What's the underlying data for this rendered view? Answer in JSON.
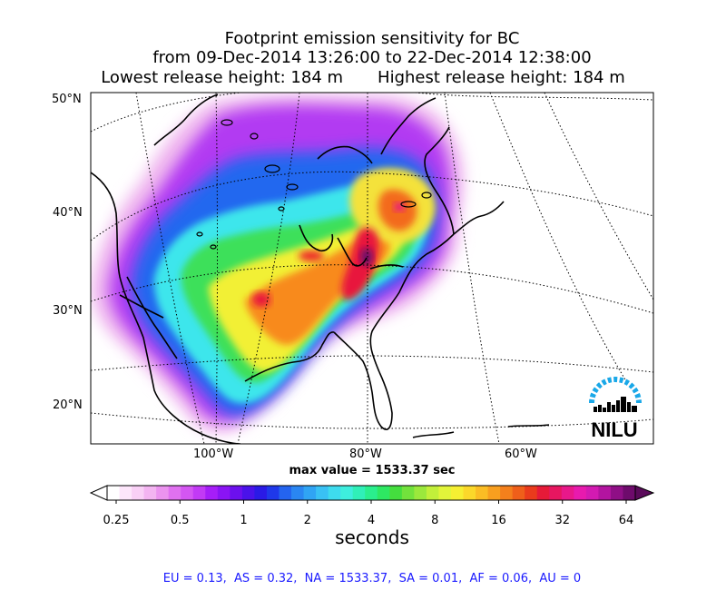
{
  "title": {
    "line1": "Footprint emission sensitivity for BC",
    "line2": "from 09-Dec-2014 13:26:00 to 22-Dec-2014 12:38:00",
    "lowest": "Lowest release height: 184 m",
    "highest": "Highest release height: 184 m"
  },
  "map": {
    "lat_labels": [
      "50°N",
      "40°N",
      "30°N",
      "20°N"
    ],
    "lon_labels": [
      "100°W",
      "80°W",
      "60°W"
    ],
    "logo_text": "NILU",
    "max_value": "max value = 1533.37 sec"
  },
  "colorbar": {
    "ticks": [
      "0.25",
      "0.5",
      "1",
      "2",
      "4",
      "8",
      "16",
      "32",
      "64"
    ],
    "unit": "seconds",
    "colors": [
      "#ffffff",
      "#fde6fb",
      "#f9d0f6",
      "#f3b4f1",
      "#eb93ef",
      "#e071f0",
      "#d456f2",
      "#c23af5",
      "#a61ef8",
      "#8a14f4",
      "#6c10ee",
      "#4a12ea",
      "#2a1ae6",
      "#1f38ea",
      "#2464ef",
      "#2a86f2",
      "#30a4f4",
      "#39c1f4",
      "#3edbee",
      "#3eeede",
      "#30f0b8",
      "#2aef8d",
      "#2ee862",
      "#44de3e",
      "#72e23c",
      "#9be83c",
      "#c2ef3a",
      "#e2f53a",
      "#f6ef32",
      "#fbd82a",
      "#fbbd24",
      "#f89f1f",
      "#f4801c",
      "#ef5f1a",
      "#ea3b1c",
      "#e61a38",
      "#e71660",
      "#e8188a",
      "#e81aae",
      "#d31ab2",
      "#b314a0",
      "#8f0f86",
      "#6e0b6c"
    ]
  },
  "regions": "EU = 0.13,  AS = 0.32,  NA = 1533.37,  SA = 0.01,  AF = 0.06,  AU = 0"
}
